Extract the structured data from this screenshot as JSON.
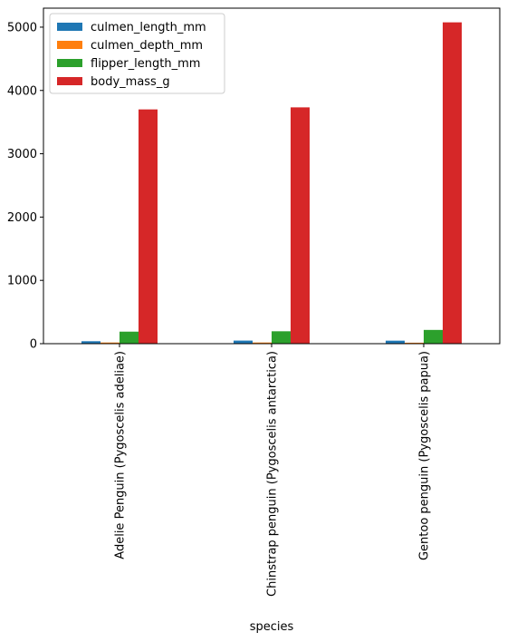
{
  "chart_data": {
    "type": "bar",
    "xlabel": "species",
    "ylabel": "",
    "categories": [
      "Adelie Penguin (Pygoscelis adeliae)",
      "Chinstrap penguin (Pygoscelis antarctica)",
      "Gentoo penguin (Pygoscelis papua)"
    ],
    "series": [
      {
        "name": "culmen_length_mm",
        "color": "#1f77b4",
        "values": [
          38.8,
          48.8,
          47.5
        ]
      },
      {
        "name": "culmen_depth_mm",
        "color": "#ff7f0e",
        "values": [
          18.3,
          18.4,
          15.0
        ]
      },
      {
        "name": "flipper_length_mm",
        "color": "#2ca02c",
        "values": [
          190.0,
          195.8,
          217.2
        ]
      },
      {
        "name": "body_mass_g",
        "color": "#d62728",
        "values": [
          3700.7,
          3733.1,
          5076.0
        ]
      }
    ],
    "ylim": [
      0,
      5300
    ],
    "yticks": [
      0,
      1000,
      2000,
      3000,
      4000,
      5000
    ],
    "grid": false,
    "legend": "top-left"
  }
}
